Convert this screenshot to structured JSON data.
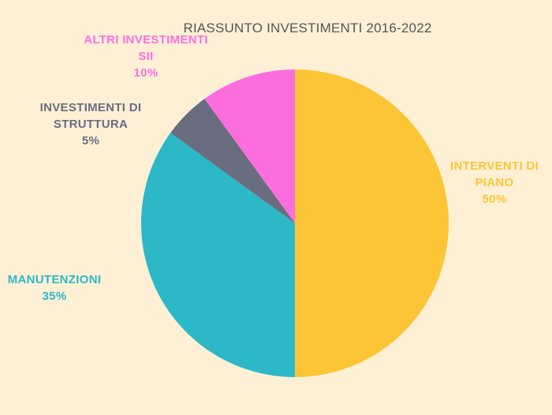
{
  "chart_data": {
    "type": "pie",
    "title": "RIASSUNTO INVESTIMENTI 2016-2022",
    "slices": [
      {
        "label": "INTERVENTI DI PIANO",
        "value": 50,
        "pct_text": "50%",
        "color": "#fcc536"
      },
      {
        "label": "MANUTENZIONI",
        "value": 35,
        "pct_text": "35%",
        "color": "#2cb8c6"
      },
      {
        "label": "INVESTIMENTI DI STRUTTURA",
        "value": 5,
        "pct_text": "5%",
        "color": "#6a6c80"
      },
      {
        "label": "ALTRI INVESTIMENTI SII",
        "value": 10,
        "pct_text": "10%",
        "color": "#fc6ede"
      }
    ],
    "legend": "none",
    "labels_position": "outside"
  }
}
